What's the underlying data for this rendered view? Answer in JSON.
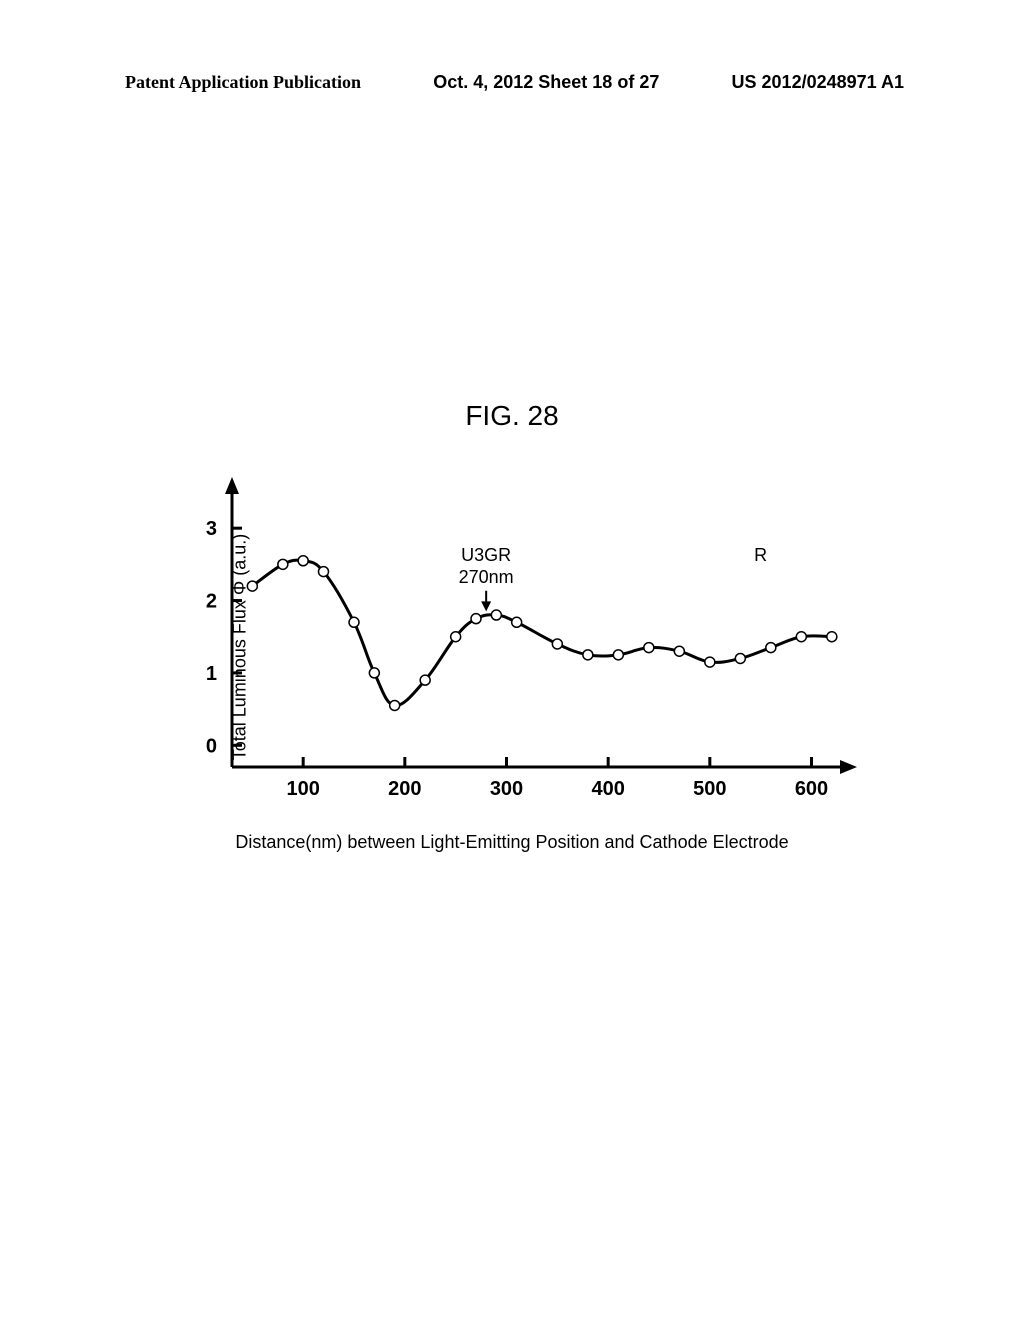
{
  "header": {
    "left": "Patent Application Publication",
    "center": "Oct. 4, 2012  Sheet 18 of 27",
    "right": "US 2012/0248971 A1"
  },
  "figure": {
    "title": "FIG. 28",
    "chart": {
      "type": "line",
      "y_label": "Total Luminous Flux Φ (a.u.)",
      "x_label": "Distance(nm) between Light-Emitting Position and Cathode Electrode",
      "x_ticks": [
        100,
        200,
        300,
        400,
        500,
        600
      ],
      "y_ticks": [
        0,
        1,
        2,
        3
      ],
      "xlim": [
        30,
        630
      ],
      "ylim": [
        -0.3,
        3.5
      ],
      "data_points": [
        {
          "x": 50,
          "y": 2.2
        },
        {
          "x": 80,
          "y": 2.5
        },
        {
          "x": 100,
          "y": 2.55
        },
        {
          "x": 120,
          "y": 2.4
        },
        {
          "x": 150,
          "y": 1.7
        },
        {
          "x": 170,
          "y": 1.0
        },
        {
          "x": 190,
          "y": 0.55
        },
        {
          "x": 220,
          "y": 0.9
        },
        {
          "x": 250,
          "y": 1.5
        },
        {
          "x": 270,
          "y": 1.75
        },
        {
          "x": 290,
          "y": 1.8
        },
        {
          "x": 310,
          "y": 1.7
        },
        {
          "x": 350,
          "y": 1.4
        },
        {
          "x": 380,
          "y": 1.25
        },
        {
          "x": 410,
          "y": 1.25
        },
        {
          "x": 440,
          "y": 1.35
        },
        {
          "x": 470,
          "y": 1.3
        },
        {
          "x": 500,
          "y": 1.15
        },
        {
          "x": 530,
          "y": 1.2
        },
        {
          "x": 560,
          "y": 1.35
        },
        {
          "x": 590,
          "y": 1.5
        },
        {
          "x": 620,
          "y": 1.5
        }
      ],
      "line_color": "#000000",
      "line_width": 3,
      "marker_size": 5,
      "marker_fill": "#ffffff",
      "marker_stroke": "#000000",
      "axis_color": "#000000",
      "axis_width": 3,
      "background_color": "#ffffff",
      "tick_fontsize": 20,
      "label_fontsize": 18,
      "annotations": [
        {
          "text_line1": "U3GR",
          "text_line2": "270nm",
          "x": 280,
          "y_top": 2.55,
          "arrow_to_y": 1.85
        },
        {
          "text_line1": "R",
          "x": 550,
          "y_top": 2.55
        }
      ]
    }
  }
}
